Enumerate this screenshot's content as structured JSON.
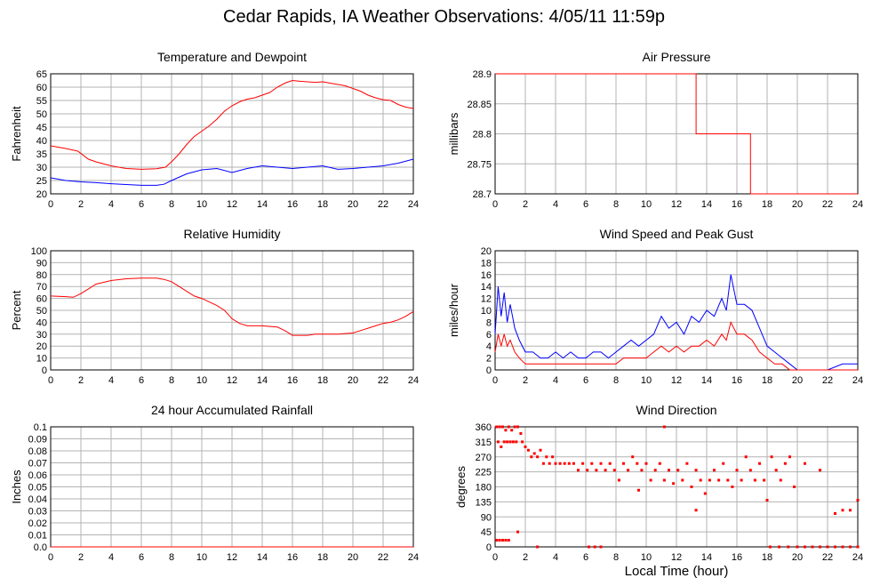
{
  "title": "Cedar Rapids, IA Weather Observations: 4/05/11 11:59p",
  "xlabel": "Local Time (hour)",
  "colors": {
    "red": "#ff0000",
    "blue": "#0000ff",
    "grid": "#b3b3b3"
  },
  "chart_data": [
    {
      "id": "temperature",
      "type": "line",
      "title": "Temperature and Dewpoint",
      "xlabel": "",
      "ylabel": "Fahrenheit",
      "xlim": [
        0,
        24
      ],
      "ylim": [
        20,
        65
      ],
      "xticks": [
        0,
        2,
        4,
        6,
        8,
        10,
        12,
        14,
        16,
        18,
        20,
        22,
        24
      ],
      "yticks": [
        20,
        25,
        30,
        35,
        40,
        45,
        50,
        55,
        60,
        65
      ],
      "grid": true,
      "series": [
        {
          "color": "#ff0000",
          "x": [
            0,
            1,
            1.8,
            2.5,
            3,
            4,
            5,
            6,
            7,
            7.6,
            8,
            8.5,
            9,
            9.5,
            10,
            10.5,
            11,
            11.5,
            12,
            12.5,
            13,
            13.5,
            14,
            14.5,
            15,
            15.5,
            16,
            16.5,
            17,
            17.5,
            18,
            18.5,
            19,
            19.5,
            20,
            20.5,
            21,
            21.5,
            22,
            22.5,
            23,
            23.5,
            24
          ],
          "y": [
            38,
            37,
            36,
            33,
            32,
            30.5,
            29.5,
            29.2,
            29.4,
            30,
            32,
            35,
            38.5,
            41.5,
            43.5,
            45.5,
            48,
            51,
            53,
            54.5,
            55.5,
            56,
            57,
            58,
            60,
            61.5,
            62.5,
            62.2,
            62,
            61.8,
            62,
            61.5,
            61,
            60.5,
            59.5,
            58.5,
            57,
            56,
            55.3,
            55,
            53.5,
            52.5,
            52
          ]
        },
        {
          "color": "#0000ff",
          "x": [
            0,
            1,
            2,
            3,
            4,
            5,
            6,
            7,
            7.5,
            8,
            9,
            10,
            11,
            12,
            13,
            14,
            15,
            16,
            17,
            18,
            19,
            20,
            21,
            22,
            23,
            24
          ],
          "y": [
            26,
            25,
            24.5,
            24.2,
            23.8,
            23.5,
            23.2,
            23.2,
            23.6,
            25,
            27.5,
            29,
            29.5,
            28,
            29.5,
            30.5,
            30,
            29.5,
            30,
            30.5,
            29.2,
            29.5,
            30,
            30.5,
            31.5,
            33
          ]
        }
      ]
    },
    {
      "id": "pressure",
      "type": "line",
      "title": "Air Pressure",
      "xlabel": "",
      "ylabel": "millibars",
      "xlim": [
        0,
        24
      ],
      "ylim": [
        28.7,
        28.9
      ],
      "xticks": [
        0,
        2,
        4,
        6,
        8,
        10,
        12,
        14,
        16,
        18,
        20,
        22,
        24
      ],
      "yticks": [
        28.7,
        28.75,
        28.8,
        28.85,
        28.9
      ],
      "ytick_labels": [
        "28.7",
        "28.75",
        "28.8",
        "28.85",
        "28.9"
      ],
      "grid": true,
      "series": [
        {
          "color": "#ff0000",
          "x": [
            0,
            13.3,
            13.3,
            16.9,
            16.9,
            24
          ],
          "y": [
            28.9,
            28.9,
            28.8,
            28.8,
            28.7,
            28.7
          ]
        }
      ]
    },
    {
      "id": "humidity",
      "type": "line",
      "title": "Relative Humidity",
      "xlabel": "",
      "ylabel": "Percent",
      "xlim": [
        0,
        24
      ],
      "ylim": [
        0,
        100
      ],
      "xticks": [
        0,
        2,
        4,
        6,
        8,
        10,
        12,
        14,
        16,
        18,
        20,
        22,
        24
      ],
      "yticks": [
        0,
        10,
        20,
        30,
        40,
        50,
        60,
        70,
        80,
        90,
        100
      ],
      "grid": true,
      "series": [
        {
          "color": "#ff0000",
          "x": [
            0,
            1,
            1.5,
            2,
            2.5,
            3,
            4,
            5,
            6,
            7,
            7.5,
            8,
            8.5,
            9,
            9.5,
            10,
            10.5,
            11,
            11.5,
            12,
            12.5,
            13,
            13.5,
            14,
            14.5,
            15,
            15.5,
            16,
            16.5,
            17,
            17.5,
            18,
            18.5,
            19,
            19.5,
            20,
            20.5,
            21,
            21.5,
            22,
            22.5,
            23,
            23.5,
            24
          ],
          "y": [
            62,
            61.5,
            61,
            64,
            68,
            72,
            75,
            76.5,
            77,
            77,
            76,
            74,
            70,
            66,
            62,
            60,
            57,
            54,
            50,
            43,
            39,
            37,
            37,
            37,
            36.5,
            36,
            33,
            29,
            29,
            29,
            30,
            30,
            30,
            30,
            30.5,
            31,
            33,
            35,
            37,
            39,
            40,
            42,
            45,
            49
          ]
        }
      ]
    },
    {
      "id": "wind_speed",
      "type": "line",
      "title": "Wind Speed and Peak Gust",
      "xlabel": "",
      "ylabel": "miles/hour",
      "xlim": [
        0,
        24
      ],
      "ylim": [
        0,
        20
      ],
      "xticks": [
        0,
        2,
        4,
        6,
        8,
        10,
        12,
        14,
        16,
        18,
        20,
        22,
        24
      ],
      "yticks": [
        0,
        2,
        4,
        6,
        8,
        10,
        12,
        14,
        16,
        18,
        20
      ],
      "grid": true,
      "series": [
        {
          "color": "#0000ff",
          "x": [
            0,
            0.2,
            0.4,
            0.6,
            0.8,
            1,
            1.3,
            1.6,
            2,
            2.5,
            3,
            3.5,
            4,
            4.5,
            5,
            5.5,
            6,
            6.5,
            7,
            7.5,
            8,
            8.5,
            9,
            9.5,
            10,
            10.5,
            11,
            11.5,
            12,
            12.5,
            13,
            13.5,
            14,
            14.5,
            15,
            15.3,
            15.6,
            16,
            16.5,
            17,
            17.5,
            18,
            18.5,
            19,
            19.5,
            20,
            21,
            22,
            23,
            24
          ],
          "y": [
            6,
            14,
            9,
            13,
            8,
            11,
            7,
            5,
            3,
            3,
            2,
            2,
            3,
            2,
            3,
            2,
            2,
            3,
            3,
            2,
            3,
            4,
            5,
            4,
            5,
            6,
            9,
            7,
            8,
            6,
            9,
            8,
            10,
            9,
            12,
            10,
            16,
            11,
            11,
            10,
            7,
            4,
            3,
            2,
            1,
            0,
            0,
            0,
            1,
            1
          ]
        },
        {
          "color": "#ff0000",
          "x": [
            0,
            0.2,
            0.4,
            0.6,
            0.8,
            1,
            1.3,
            1.6,
            2,
            2.5,
            3,
            3.5,
            4,
            4.5,
            5,
            5.5,
            6,
            6.5,
            7,
            7.5,
            8,
            8.5,
            9,
            9.5,
            10,
            10.5,
            11,
            11.5,
            12,
            12.5,
            13,
            13.5,
            14,
            14.5,
            15,
            15.3,
            15.6,
            16,
            16.5,
            17,
            17.5,
            18,
            18.5,
            19,
            19.5,
            20,
            21,
            22,
            23,
            24
          ],
          "y": [
            3,
            6,
            4,
            6,
            4,
            5,
            3,
            2,
            1,
            1,
            1,
            1,
            1,
            1,
            1,
            1,
            1,
            1,
            1,
            1,
            1,
            2,
            2,
            2,
            2,
            3,
            4,
            3,
            4,
            3,
            4,
            4,
            5,
            4,
            6,
            5,
            8,
            6,
            6,
            5,
            3,
            2,
            1,
            1,
            0,
            0,
            0,
            0,
            0,
            0
          ]
        }
      ]
    },
    {
      "id": "rainfall",
      "type": "line",
      "title": "24 hour Accumulated Rainfall",
      "xlabel": "",
      "ylabel": "Inches",
      "xlim": [
        0,
        24
      ],
      "ylim": [
        0,
        0.1
      ],
      "xticks": [
        0,
        2,
        4,
        6,
        8,
        10,
        12,
        14,
        16,
        18,
        20,
        22,
        24
      ],
      "yticks": [
        0,
        0.01,
        0.02,
        0.03,
        0.04,
        0.05,
        0.06,
        0.07,
        0.08,
        0.09,
        0.1
      ],
      "ytick_labels": [
        "0.0",
        "0.01",
        "0.02",
        "0.03",
        "0.04",
        "0.05",
        "0.06",
        "0.07",
        "0.08",
        "0.09",
        "0.1"
      ],
      "grid": true,
      "series": [
        {
          "color": "#ff0000",
          "x": [
            0,
            24
          ],
          "y": [
            0,
            0
          ]
        }
      ]
    },
    {
      "id": "wind_direction",
      "type": "scatter",
      "title": "Wind Direction",
      "xlabel": "Local Time (hour)",
      "ylabel": "degrees",
      "xlim": [
        0,
        24
      ],
      "ylim": [
        0,
        360
      ],
      "xticks": [
        0,
        2,
        4,
        6,
        8,
        10,
        12,
        14,
        16,
        18,
        20,
        22,
        24
      ],
      "yticks": [
        0,
        45,
        90,
        135,
        180,
        225,
        270,
        315,
        360
      ],
      "grid": true,
      "series": [
        {
          "color": "#ff0000",
          "points": [
            [
              0.1,
              360
            ],
            [
              0.3,
              360
            ],
            [
              0.5,
              360
            ],
            [
              0.7,
              350
            ],
            [
              0.9,
              360
            ],
            [
              1.1,
              350
            ],
            [
              1.3,
              360
            ],
            [
              1.5,
              360
            ],
            [
              1.7,
              340
            ],
            [
              0.2,
              315
            ],
            [
              0.4,
              300
            ],
            [
              0.6,
              315
            ],
            [
              0.8,
              315
            ],
            [
              1.0,
              315
            ],
            [
              1.2,
              315
            ],
            [
              1.4,
              315
            ],
            [
              1.8,
              315
            ],
            [
              2.0,
              300
            ],
            [
              0.1,
              20
            ],
            [
              0.3,
              20
            ],
            [
              0.5,
              20
            ],
            [
              0.7,
              20
            ],
            [
              0.9,
              20
            ],
            [
              1.5,
              45
            ],
            [
              2.2,
              290
            ],
            [
              2.4,
              270
            ],
            [
              2.6,
              280
            ],
            [
              2.8,
              270
            ],
            [
              3.0,
              290
            ],
            [
              3.2,
              250
            ],
            [
              3.4,
              270
            ],
            [
              3.6,
              250
            ],
            [
              3.8,
              270
            ],
            [
              4.0,
              250
            ],
            [
              4.3,
              250
            ],
            [
              4.6,
              250
            ],
            [
              4.9,
              250
            ],
            [
              5.2,
              250
            ],
            [
              5.5,
              230
            ],
            [
              5.8,
              250
            ],
            [
              6.1,
              230
            ],
            [
              6.4,
              250
            ],
            [
              6.7,
              230
            ],
            [
              7.0,
              250
            ],
            [
              7.3,
              230
            ],
            [
              7.6,
              250
            ],
            [
              7.9,
              230
            ],
            [
              8.2,
              200
            ],
            [
              8.5,
              250
            ],
            [
              8.8,
              230
            ],
            [
              9.1,
              270
            ],
            [
              9.4,
              250
            ],
            [
              9.7,
              230
            ],
            [
              10.0,
              250
            ],
            [
              10.3,
              200
            ],
            [
              10.6,
              230
            ],
            [
              10.9,
              250
            ],
            [
              11.2,
              200
            ],
            [
              11.5,
              230
            ],
            [
              11.8,
              190
            ],
            [
              12.1,
              230
            ],
            [
              12.4,
              200
            ],
            [
              12.7,
              250
            ],
            [
              13.0,
              180
            ],
            [
              13.3,
              230
            ],
            [
              13.6,
              200
            ],
            [
              13.9,
              160
            ],
            [
              14.2,
              200
            ],
            [
              14.5,
              230
            ],
            [
              14.8,
              200
            ],
            [
              15.1,
              250
            ],
            [
              15.4,
              200
            ],
            [
              15.7,
              180
            ],
            [
              16.0,
              230
            ],
            [
              16.3,
              200
            ],
            [
              16.6,
              270
            ],
            [
              16.9,
              230
            ],
            [
              17.2,
              200
            ],
            [
              17.5,
              250
            ],
            [
              17.8,
              200
            ],
            [
              18.0,
              140
            ],
            [
              18.3,
              270
            ],
            [
              18.6,
              230
            ],
            [
              18.9,
              200
            ],
            [
              19.2,
              250
            ],
            [
              19.5,
              270
            ],
            [
              19.8,
              180
            ],
            [
              20.5,
              250
            ],
            [
              21.5,
              230
            ],
            [
              22.5,
              100
            ],
            [
              23.0,
              110
            ],
            [
              23.5,
              110
            ],
            [
              24.0,
              140
            ],
            [
              6.2,
              0
            ],
            [
              6.6,
              0
            ],
            [
              7.0,
              0
            ],
            [
              18.2,
              0
            ],
            [
              18.8,
              0
            ],
            [
              19.4,
              0
            ],
            [
              20.0,
              0
            ],
            [
              20.5,
              0
            ],
            [
              21.0,
              0
            ],
            [
              21.5,
              0
            ],
            [
              22.0,
              0
            ],
            [
              22.5,
              0
            ],
            [
              23.0,
              0
            ],
            [
              23.5,
              0
            ],
            [
              24.0,
              0
            ],
            [
              11.2,
              360
            ],
            [
              2.8,
              0
            ],
            [
              13.3,
              110
            ],
            [
              9.5,
              170
            ]
          ]
        }
      ]
    }
  ]
}
